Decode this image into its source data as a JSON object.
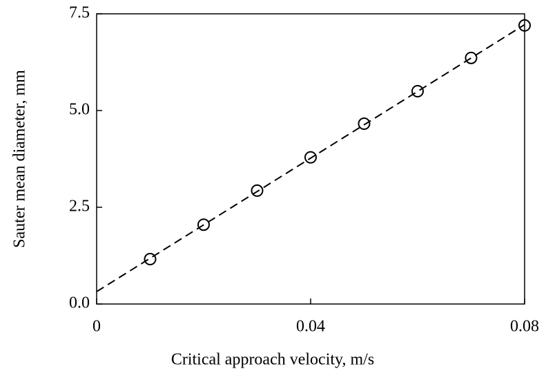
{
  "chart_data": {
    "type": "scatter",
    "xlabel": "Critical approach velocity, m/s",
    "ylabel": "Sauter mean diameter, mm",
    "xlim": [
      0,
      0.08
    ],
    "xticks": [
      0,
      0.04,
      0.08
    ],
    "ylim": [
      0,
      7.5
    ],
    "yticks": [
      {
        "value": 0,
        "label": "0.0"
      },
      {
        "value": 2.5,
        "label": "2.5"
      },
      {
        "value": 5,
        "label": "5.0"
      },
      {
        "value": 7.5,
        "label": "7.5"
      }
    ],
    "grid": false,
    "series": [
      {
        "color": "#000000",
        "marker": "circle",
        "x": [
          0.01,
          0.02,
          0.03,
          0.04,
          0.05,
          0.06,
          0.07,
          0.08
        ],
        "values": [
          1.16,
          2.05,
          2.93,
          3.79,
          4.66,
          5.5,
          6.36,
          7.2
        ]
      },
      {
        "color": "#000000",
        "linestyle": "dashed",
        "x": [
          0,
          0.08
        ],
        "values": [
          0.32,
          7.22
        ]
      }
    ]
  }
}
